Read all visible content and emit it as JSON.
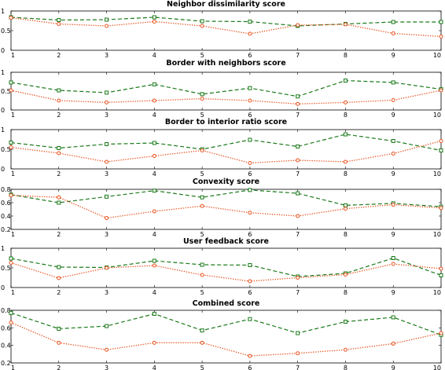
{
  "chart_data": [
    {
      "type": "line",
      "title": "Neighbor dissimilarity score",
      "x": [
        1,
        2,
        3,
        4,
        5,
        6,
        7,
        8,
        9,
        10
      ],
      "xticks": [
        "1",
        "2",
        "3",
        "4",
        "5",
        "6",
        "7",
        "8",
        "9",
        "10"
      ],
      "ylim": [
        0,
        1
      ],
      "yticks": [
        "0",
        "0.5",
        "1"
      ],
      "series": [
        {
          "color": "#1a7a1a",
          "style": "dashed",
          "marker": "square",
          "values": [
            0.84,
            0.77,
            0.78,
            0.84,
            0.74,
            0.73,
            0.62,
            0.67,
            0.72,
            0.72
          ]
        },
        {
          "color": "#e8501c",
          "style": "dotted",
          "marker": "circle",
          "values": [
            0.83,
            0.67,
            0.62,
            0.73,
            0.62,
            0.42,
            0.64,
            0.66,
            0.43,
            0.35
          ]
        }
      ]
    },
    {
      "type": "line",
      "title": "Border with neighbors score",
      "x": [
        1,
        2,
        3,
        4,
        5,
        6,
        7,
        8,
        9,
        10
      ],
      "xticks": [
        "1",
        "2",
        "3",
        "4",
        "5",
        "6",
        "7",
        "8",
        "9",
        "10"
      ],
      "ylim": [
        0,
        1
      ],
      "yticks": [
        "0",
        "0.5",
        "1"
      ],
      "series": [
        {
          "color": "#1a7a1a",
          "style": "dashed",
          "marker": "square",
          "values": [
            0.73,
            0.52,
            0.46,
            0.68,
            0.42,
            0.58,
            0.36,
            0.78,
            0.73,
            0.55
          ]
        },
        {
          "color": "#e8501c",
          "style": "dotted",
          "marker": "circle",
          "values": [
            0.52,
            0.25,
            0.2,
            0.25,
            0.3,
            0.25,
            0.16,
            0.2,
            0.26,
            0.52
          ]
        }
      ]
    },
    {
      "type": "line",
      "title": "Border to interior ratio score",
      "x": [
        1,
        2,
        3,
        4,
        5,
        6,
        7,
        8,
        9,
        10
      ],
      "xticks": [
        "1",
        "2",
        "3",
        "4",
        "5",
        "6",
        "7",
        "8",
        "9",
        "10"
      ],
      "ylim": [
        0,
        1
      ],
      "yticks": [
        "0",
        "0.5",
        "1"
      ],
      "series": [
        {
          "color": "#1a7a1a",
          "style": "dashed",
          "marker": "square",
          "values": [
            0.67,
            0.53,
            0.63,
            0.66,
            0.5,
            0.74,
            0.57,
            0.88,
            0.71,
            0.47
          ]
        },
        {
          "color": "#e8501c",
          "style": "dotted",
          "marker": "circle",
          "values": [
            0.55,
            0.4,
            0.18,
            0.33,
            0.47,
            0.15,
            0.22,
            0.18,
            0.39,
            0.71
          ]
        }
      ]
    },
    {
      "type": "line",
      "title": "Convexity score",
      "x": [
        1,
        2,
        3,
        4,
        5,
        6,
        7,
        8,
        9,
        10
      ],
      "xticks": [
        "1",
        "2",
        "3",
        "4",
        "5",
        "6",
        "7",
        "8",
        "9",
        "10"
      ],
      "ylim": [
        0.2,
        0.8
      ],
      "yticks": [
        "0.2",
        "0.4",
        "0.6",
        "0.8"
      ],
      "series": [
        {
          "color": "#1a7a1a",
          "style": "dashed",
          "marker": "square",
          "values": [
            0.72,
            0.6,
            0.69,
            0.78,
            0.68,
            0.79,
            0.74,
            0.56,
            0.59,
            0.54
          ]
        },
        {
          "color": "#e8501c",
          "style": "dotted",
          "marker": "circle",
          "values": [
            0.71,
            0.68,
            0.37,
            0.47,
            0.55,
            0.45,
            0.4,
            0.51,
            0.57,
            0.52
          ]
        }
      ]
    },
    {
      "type": "line",
      "title": "User feedback score",
      "x": [
        1,
        2,
        3,
        4,
        5,
        6,
        7,
        8,
        9,
        10
      ],
      "xticks": [
        "1",
        "2",
        "3",
        "4",
        "5",
        "6",
        "7",
        "8",
        "9",
        "10"
      ],
      "ylim": [
        0,
        1
      ],
      "yticks": [
        "0",
        "0.5",
        "1"
      ],
      "series": [
        {
          "color": "#1a7a1a",
          "style": "dashed",
          "marker": "square",
          "values": [
            0.74,
            0.52,
            0.51,
            0.68,
            0.58,
            0.57,
            0.28,
            0.36,
            0.75,
            0.31
          ]
        },
        {
          "color": "#e8501c",
          "style": "dotted",
          "marker": "circle",
          "values": [
            0.63,
            0.24,
            0.5,
            0.56,
            0.32,
            0.16,
            0.25,
            0.33,
            0.6,
            0.48
          ]
        }
      ]
    },
    {
      "type": "line",
      "title": "Combined score",
      "x": [
        1,
        2,
        3,
        4,
        5,
        6,
        7,
        8,
        9,
        10
      ],
      "xticks": [
        "1",
        "2",
        "3",
        "4",
        "5",
        "6",
        "7",
        "8",
        "9",
        "10"
      ],
      "ylim": [
        0.2,
        0.8
      ],
      "yticks": [
        "0.2",
        "0.4",
        "0.6",
        "0.8"
      ],
      "series": [
        {
          "color": "#1a7a1a",
          "style": "dashed",
          "marker": "square",
          "values": [
            0.77,
            0.59,
            0.62,
            0.76,
            0.57,
            0.7,
            0.54,
            0.67,
            0.72,
            0.52
          ]
        },
        {
          "color": "#e8501c",
          "style": "dotted",
          "marker": "circle",
          "values": [
            0.66,
            0.43,
            0.35,
            0.43,
            0.43,
            0.28,
            0.31,
            0.35,
            0.42,
            0.54
          ]
        }
      ]
    }
  ]
}
